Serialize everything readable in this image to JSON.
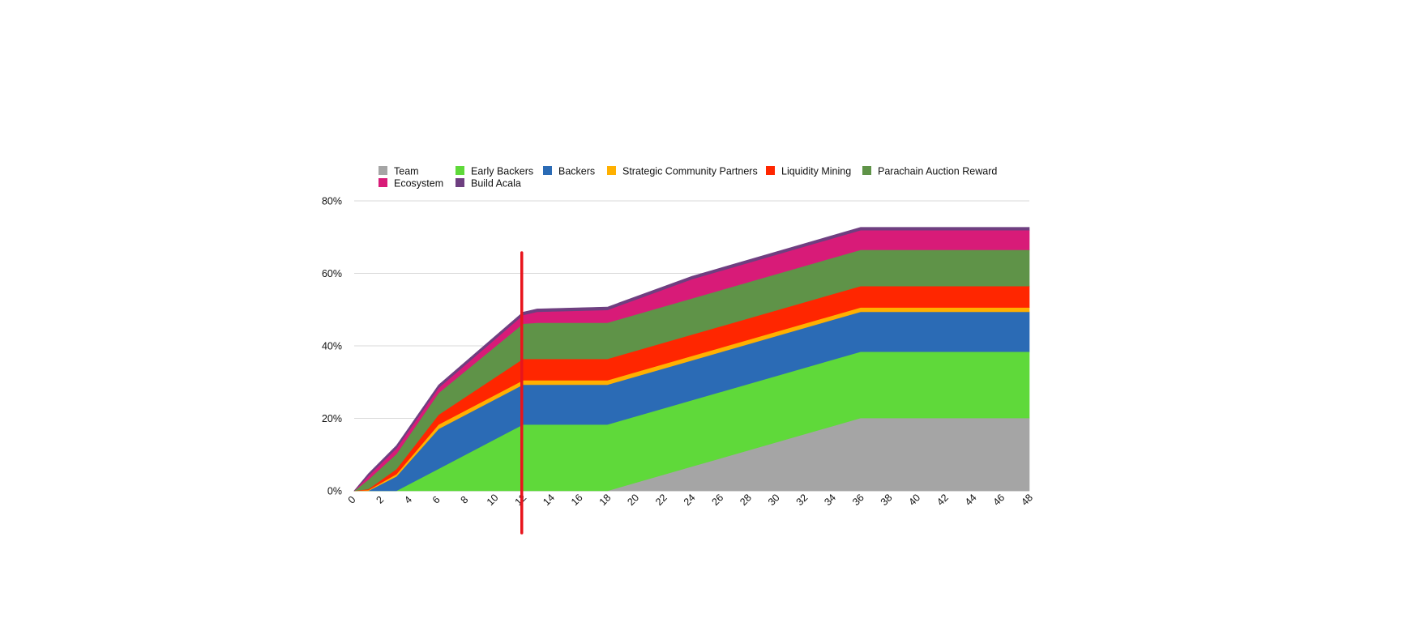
{
  "chart_data": {
    "type": "area",
    "stacked": true,
    "x": [
      0,
      1,
      3,
      6,
      12,
      13,
      18,
      24,
      36,
      48
    ],
    "x_ticks": [
      0,
      2,
      4,
      6,
      8,
      10,
      12,
      14,
      16,
      18,
      20,
      22,
      24,
      26,
      28,
      30,
      32,
      34,
      36,
      38,
      40,
      42,
      44,
      46,
      48
    ],
    "xlim": [
      0,
      48
    ],
    "ylim": [
      0,
      80
    ],
    "y_ticks": [
      "0%",
      "20%",
      "40%",
      "60%",
      "80%"
    ],
    "y_tick_values": [
      0,
      20,
      40,
      60,
      80
    ],
    "grid": true,
    "legend_position": "top",
    "marker_line": {
      "x": 12,
      "color": "#e8141c"
    },
    "series": [
      {
        "name": "Team",
        "color": "#a5a5a5",
        "values": [
          0,
          0,
          0,
          0,
          0,
          0,
          0,
          6.7,
          20.1,
          20.1
        ]
      },
      {
        "name": "Early Backers",
        "color": "#5fd93a",
        "values": [
          0,
          0,
          0,
          6.1,
          18.3,
          18.3,
          18.3,
          18.3,
          18.3,
          18.3
        ]
      },
      {
        "name": "Backers",
        "color": "#2b6bb5",
        "values": [
          0,
          0,
          4.0,
          11.0,
          11.0,
          11.0,
          11.0,
          11.0,
          11.0,
          11.0
        ]
      },
      {
        "name": "Strategic Community Partners",
        "color": "#ffb000",
        "values": [
          0,
          0.2,
          0.6,
          1.2,
          1.2,
          1.2,
          1.2,
          1.2,
          1.2,
          1.2
        ]
      },
      {
        "name": "Liquidity Mining",
        "color": "#ff2600",
        "values": [
          0,
          0.3,
          1.4,
          2.7,
          5.9,
          5.9,
          5.9,
          5.9,
          5.9,
          5.9
        ]
      },
      {
        "name": "Parachain Auction Reward",
        "color": "#5f9348",
        "values": [
          0,
          2.6,
          4.2,
          6.0,
          9.7,
          10.0,
          10.0,
          10.0,
          10.0,
          10.0
        ]
      },
      {
        "name": "Ecosystem",
        "color": "#d81b78",
        "values": [
          0,
          1.0,
          1.5,
          1.4,
          2.4,
          3.0,
          3.5,
          5.3,
          5.4,
          5.4
        ]
      },
      {
        "name": "Build Acala",
        "color": "#6e3f80",
        "values": [
          0,
          0.6,
          0.8,
          0.8,
          0.8,
          0.8,
          0.8,
          0.8,
          0.8,
          0.8
        ]
      }
    ]
  }
}
